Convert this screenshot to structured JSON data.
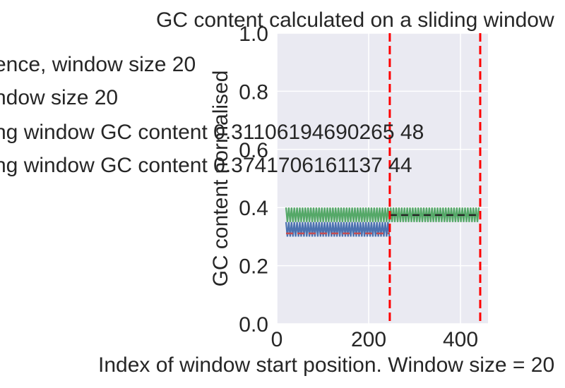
{
  "chart_data": {
    "type": "line",
    "title": "GC content calculated on a sliding window",
    "xlabel": "Index of window start position. Window size = 20",
    "ylabel": "GC content normalised",
    "xlim": [
      0,
      460
    ],
    "ylim": [
      0,
      1.0
    ],
    "x_ticks": [
      0,
      200,
      400
    ],
    "x_tick_labels": [
      "0",
      "200",
      "400"
    ],
    "y_ticks": [
      0.0,
      0.2,
      0.4,
      0.6,
      0.8,
      1.0
    ],
    "y_tick_labels": [
      "0.0",
      "0.2",
      "0.4",
      "0.6",
      "0.8",
      "1.0"
    ],
    "grid": true,
    "background": "#eaeaf2",
    "legend_placement": "left, outside plot area",
    "legend": [
      "ence, window size 20",
      "ndow size 20",
      "ng window GC content 0.31106194690265 48",
      "ng window GC content 0.3741706161137 44"
    ],
    "series": [
      {
        "color": "#4c72b0",
        "x_range": [
          20,
          246
        ],
        "low": 0.3,
        "high": 0.35,
        "baseline": 0.311,
        "spike_spacing": 3
      },
      {
        "color": "#55a868",
        "x_range": [
          20,
          440
        ],
        "low": 0.35,
        "high": 0.4,
        "baseline": 0.374,
        "spike_spacing": 3
      }
    ],
    "mean_lines": [
      {
        "value": 0.311,
        "x_range": [
          20,
          246
        ],
        "color": "#c44e52"
      },
      {
        "value": 0.374,
        "x_range": [
          246,
          440
        ],
        "color": "#262626"
      }
    ],
    "boundary_lines": [
      {
        "x": 246,
        "color": "#ff0000"
      },
      {
        "x": 443,
        "color": "#ff0000"
      }
    ]
  }
}
